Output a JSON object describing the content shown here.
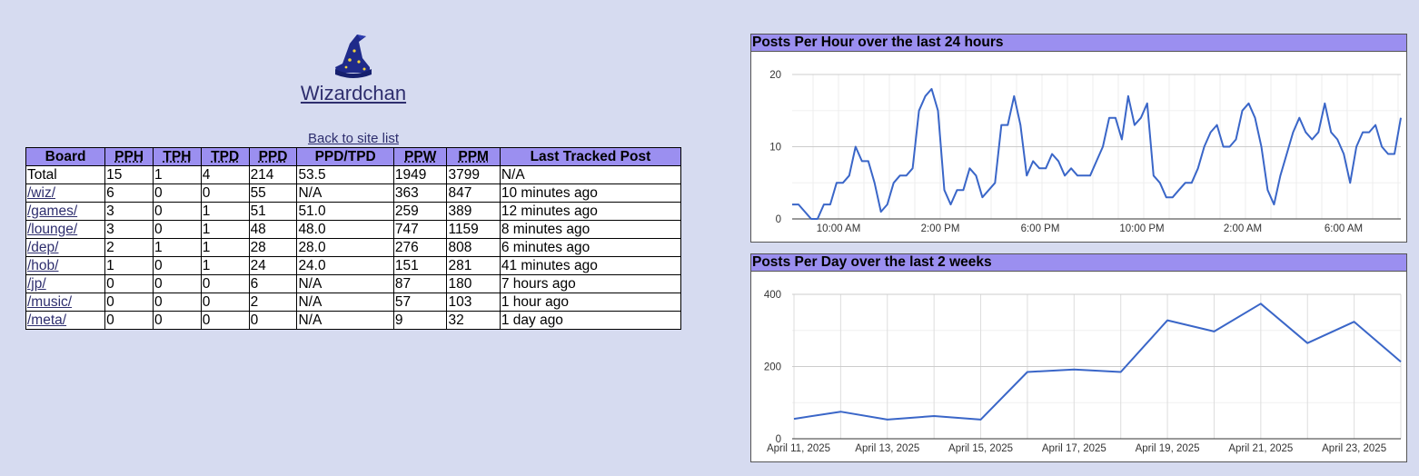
{
  "site": {
    "title": "Wizardchan",
    "logo_icon": "wizard-hat-icon",
    "back_link": "Back to site list"
  },
  "table": {
    "headers": [
      "Board",
      "PPH",
      "TPH",
      "TPD",
      "PPD",
      "PPD/TPD",
      "PPW",
      "PPM",
      "Last Tracked Post"
    ],
    "rows": [
      [
        "Total",
        "15",
        "1",
        "4",
        "214",
        "53.5",
        "1949",
        "3799",
        "N/A"
      ],
      [
        "/wiz/",
        "6",
        "0",
        "0",
        "55",
        "N/A",
        "363",
        "847",
        "10 minutes ago"
      ],
      [
        "/games/",
        "3",
        "0",
        "1",
        "51",
        "51.0",
        "259",
        "389",
        "12 minutes ago"
      ],
      [
        "/lounge/",
        "3",
        "0",
        "1",
        "48",
        "48.0",
        "747",
        "1159",
        "8 minutes ago"
      ],
      [
        "/dep/",
        "2",
        "1",
        "1",
        "28",
        "28.0",
        "276",
        "808",
        "6 minutes ago"
      ],
      [
        "/hob/",
        "1",
        "0",
        "1",
        "24",
        "24.0",
        "151",
        "281",
        "41 minutes ago"
      ],
      [
        "/jp/",
        "0",
        "0",
        "0",
        "6",
        "N/A",
        "87",
        "180",
        "7 hours ago"
      ],
      [
        "/music/",
        "0",
        "0",
        "0",
        "2",
        "N/A",
        "57",
        "103",
        "1 hour ago"
      ],
      [
        "/meta/",
        "0",
        "0",
        "0",
        "0",
        "N/A",
        "9",
        "32",
        "1 day ago"
      ]
    ]
  },
  "colors": {
    "header_bg": "#9b8ff0",
    "page_bg": "#d6dbf0",
    "line": "#3a66c8",
    "link": "#2e2e6e"
  },
  "chart_data": [
    {
      "type": "line",
      "title": "Posts Per Hour over the last 24 hours",
      "xlabel": "",
      "ylabel": "",
      "ylim": [
        0,
        20
      ],
      "yticks": [
        0,
        10,
        20
      ],
      "xtick_labels": [
        "10:00 AM",
        "2:00 PM",
        "6:00 PM",
        "10:00 PM",
        "2:00 AM",
        "6:00 AM"
      ],
      "grid": true,
      "series": [
        {
          "values": [
            2,
            2,
            1,
            0,
            0,
            2,
            2,
            5,
            5,
            6,
            10,
            8,
            8,
            5,
            1,
            2,
            5,
            6,
            6,
            7,
            15,
            17,
            18,
            15,
            4,
            2,
            4,
            4,
            7,
            6,
            3,
            4,
            5,
            13,
            13,
            17,
            13,
            6,
            8,
            7,
            7,
            9,
            8,
            6,
            7,
            6,
            6,
            6,
            8,
            10,
            14,
            14,
            11,
            17,
            13,
            14,
            16,
            6,
            5,
            3,
            3,
            4,
            5,
            5,
            7,
            10,
            12,
            13,
            10,
            10,
            11,
            15,
            16,
            14,
            10,
            4,
            2,
            6,
            9,
            12,
            14,
            12,
            11,
            12,
            16,
            12,
            11,
            9,
            5,
            10,
            12,
            12,
            13,
            10,
            9,
            9,
            14
          ]
        }
      ]
    },
    {
      "type": "line",
      "title": "Posts Per Day over the last 2 weeks",
      "xlabel": "",
      "ylabel": "",
      "ylim": [
        0,
        400
      ],
      "yticks": [
        0,
        200,
        400
      ],
      "x": [
        "April 11, 2025",
        "April 12, 2025",
        "April 13, 2025",
        "April 14, 2025",
        "April 15, 2025",
        "April 16, 2025",
        "April 17, 2025",
        "April 18, 2025",
        "April 19, 2025",
        "April 20, 2025",
        "April 21, 2025",
        "April 22, 2025",
        "April 23, 2025",
        "April 24, 2025"
      ],
      "xtick_labels": [
        "April 11, 2025",
        "April 13, 2025",
        "April 15, 2025",
        "April 17, 2025",
        "April 19, 2025",
        "April 21, 2025",
        "April 23, 2025"
      ],
      "grid": true,
      "series": [
        {
          "values": [
            55,
            75,
            53,
            63,
            53,
            185,
            192,
            185,
            328,
            297,
            374,
            265,
            324,
            213
          ]
        }
      ]
    }
  ]
}
